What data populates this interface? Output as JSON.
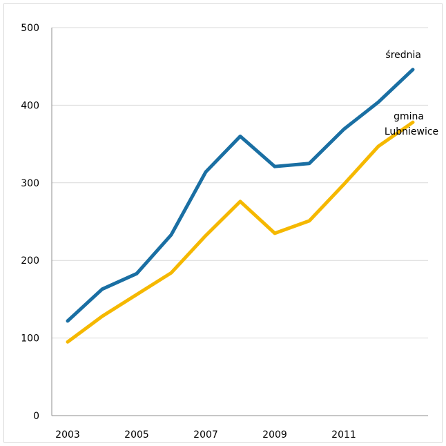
{
  "chart_data": {
    "type": "line",
    "x": [
      2003,
      2004,
      2005,
      2006,
      2007,
      2008,
      2009,
      2010,
      2011,
      2012,
      2013
    ],
    "x_tick_labels": [
      "2003",
      "2005",
      "2007",
      "2009",
      "2011"
    ],
    "y_tick_labels": [
      "0",
      "100",
      "200",
      "300",
      "400",
      "500"
    ],
    "ylim": [
      0,
      500
    ],
    "grid": true,
    "series": [
      {
        "name": "średnia",
        "color": "#1a6fa3",
        "values": [
          122,
          163,
          183,
          233,
          314,
          360,
          321,
          325,
          369,
          404,
          446
        ]
      },
      {
        "name": "gmina Lubniewice",
        "name_lines": [
          "gmina",
          "Lubniewice"
        ],
        "color": "#f5b800",
        "values": [
          95,
          128,
          156,
          184,
          232,
          276,
          235,
          251,
          298,
          347,
          378
        ]
      }
    ],
    "xlabel": "",
    "ylabel": "",
    "title": ""
  }
}
